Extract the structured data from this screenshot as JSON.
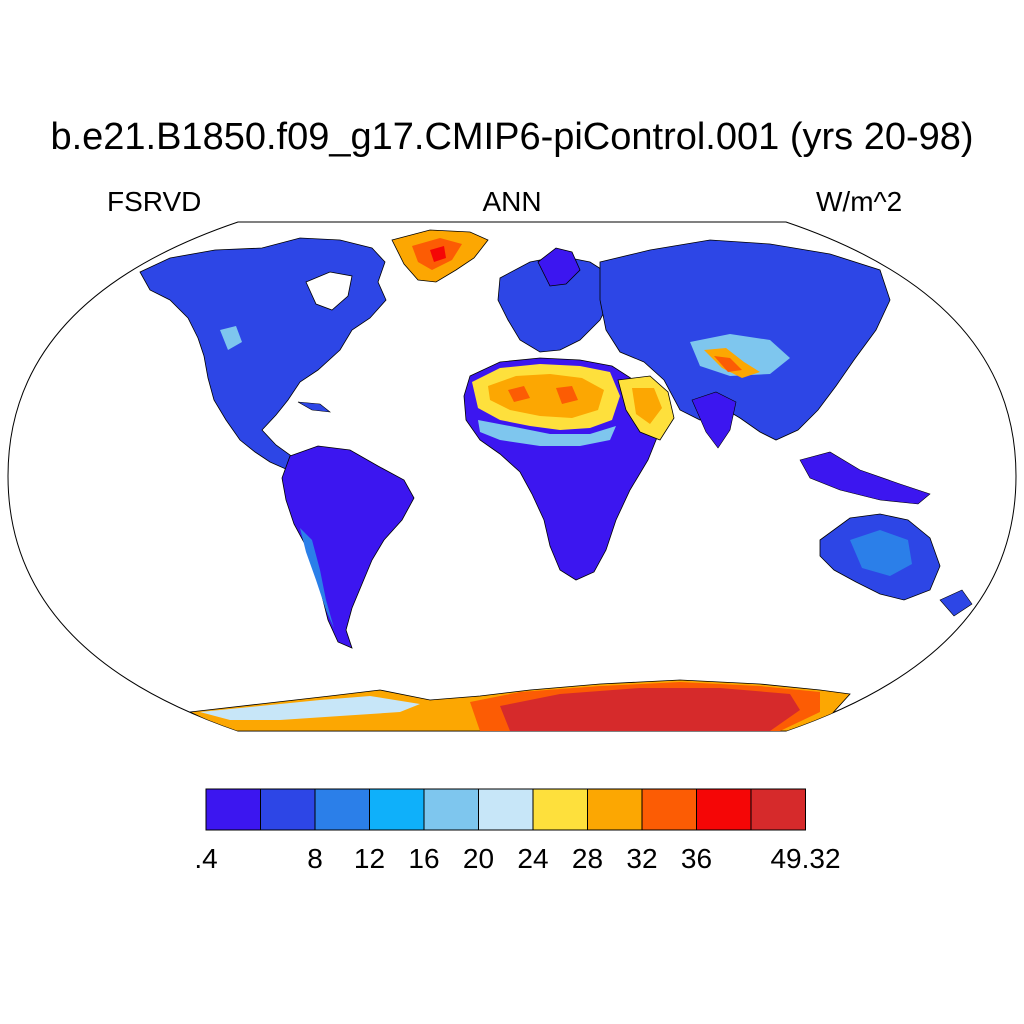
{
  "title": "b.e21.B1850.f09_g17.CMIP6-piControl.001 (yrs 20-98)",
  "variable": "FSRVD",
  "season": "ANN",
  "units": "W/m^2",
  "colorbar": {
    "colors": [
      "#3c16f0",
      "#2d46e6",
      "#2b7fe9",
      "#0fb0fa",
      "#7ec6ee",
      "#c7e6f8",
      "#fee03c",
      "#fca702",
      "#fc5c04",
      "#f50606",
      "#d62a2b"
    ],
    "labels": [
      ".4",
      "8",
      "12",
      "16",
      "20",
      "24",
      "28",
      "32",
      "36",
      "49.32"
    ]
  },
  "map_colors": {
    "ocean": "#ffffff",
    "coast": "#000000",
    "low": "#3c16f0",
    "low2": "#2d46e6",
    "mid": "#2b7fe9",
    "light": "#7ec6ee",
    "pale": "#c7e6f8",
    "yellow": "#fee03c",
    "orange": "#fca702",
    "orange2": "#fc5c04",
    "red": "#f50606",
    "darkred": "#d62a2b"
  }
}
